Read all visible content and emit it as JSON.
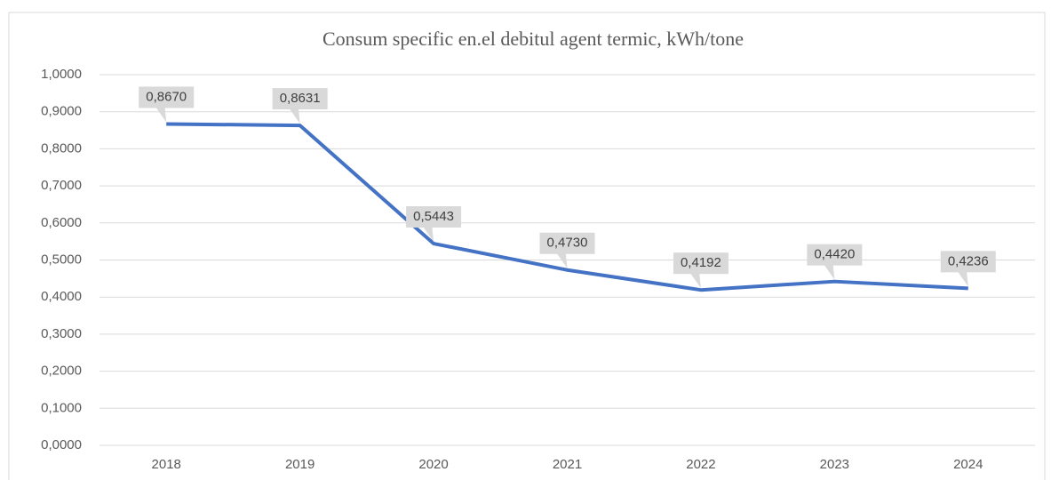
{
  "chart_data": {
    "type": "line",
    "title": "Consum specific en.el debitul agent termic, kWh/tone",
    "categories": [
      "2018",
      "2019",
      "2020",
      "2021",
      "2022",
      "2023",
      "2024"
    ],
    "series": [
      {
        "name": "Consum specific",
        "color": "#4472c4",
        "values": [
          0.867,
          0.8631,
          0.5443,
          0.473,
          0.4192,
          0.442,
          0.4236
        ],
        "value_labels": [
          "0,8670",
          "0,8631",
          "0,5443",
          "0,4730",
          "0,4192",
          "0,4420",
          "0,4236"
        ]
      }
    ],
    "ylim": [
      0,
      1
    ],
    "yticks": [
      {
        "value": 0,
        "label": "0,0000"
      },
      {
        "value": 0.1,
        "label": "0,1000"
      },
      {
        "value": 0.2,
        "label": "0,2000"
      },
      {
        "value": 0.3,
        "label": "0,3000"
      },
      {
        "value": 0.4,
        "label": "0,4000"
      },
      {
        "value": 0.5,
        "label": "0,5000"
      },
      {
        "value": 0.6,
        "label": "0,6000"
      },
      {
        "value": 0.7,
        "label": "0,7000"
      },
      {
        "value": 0.8,
        "label": "0,8000"
      },
      {
        "value": 0.9,
        "label": "0,9000"
      },
      {
        "value": 1,
        "label": "1,0000"
      }
    ],
    "grid": true
  }
}
